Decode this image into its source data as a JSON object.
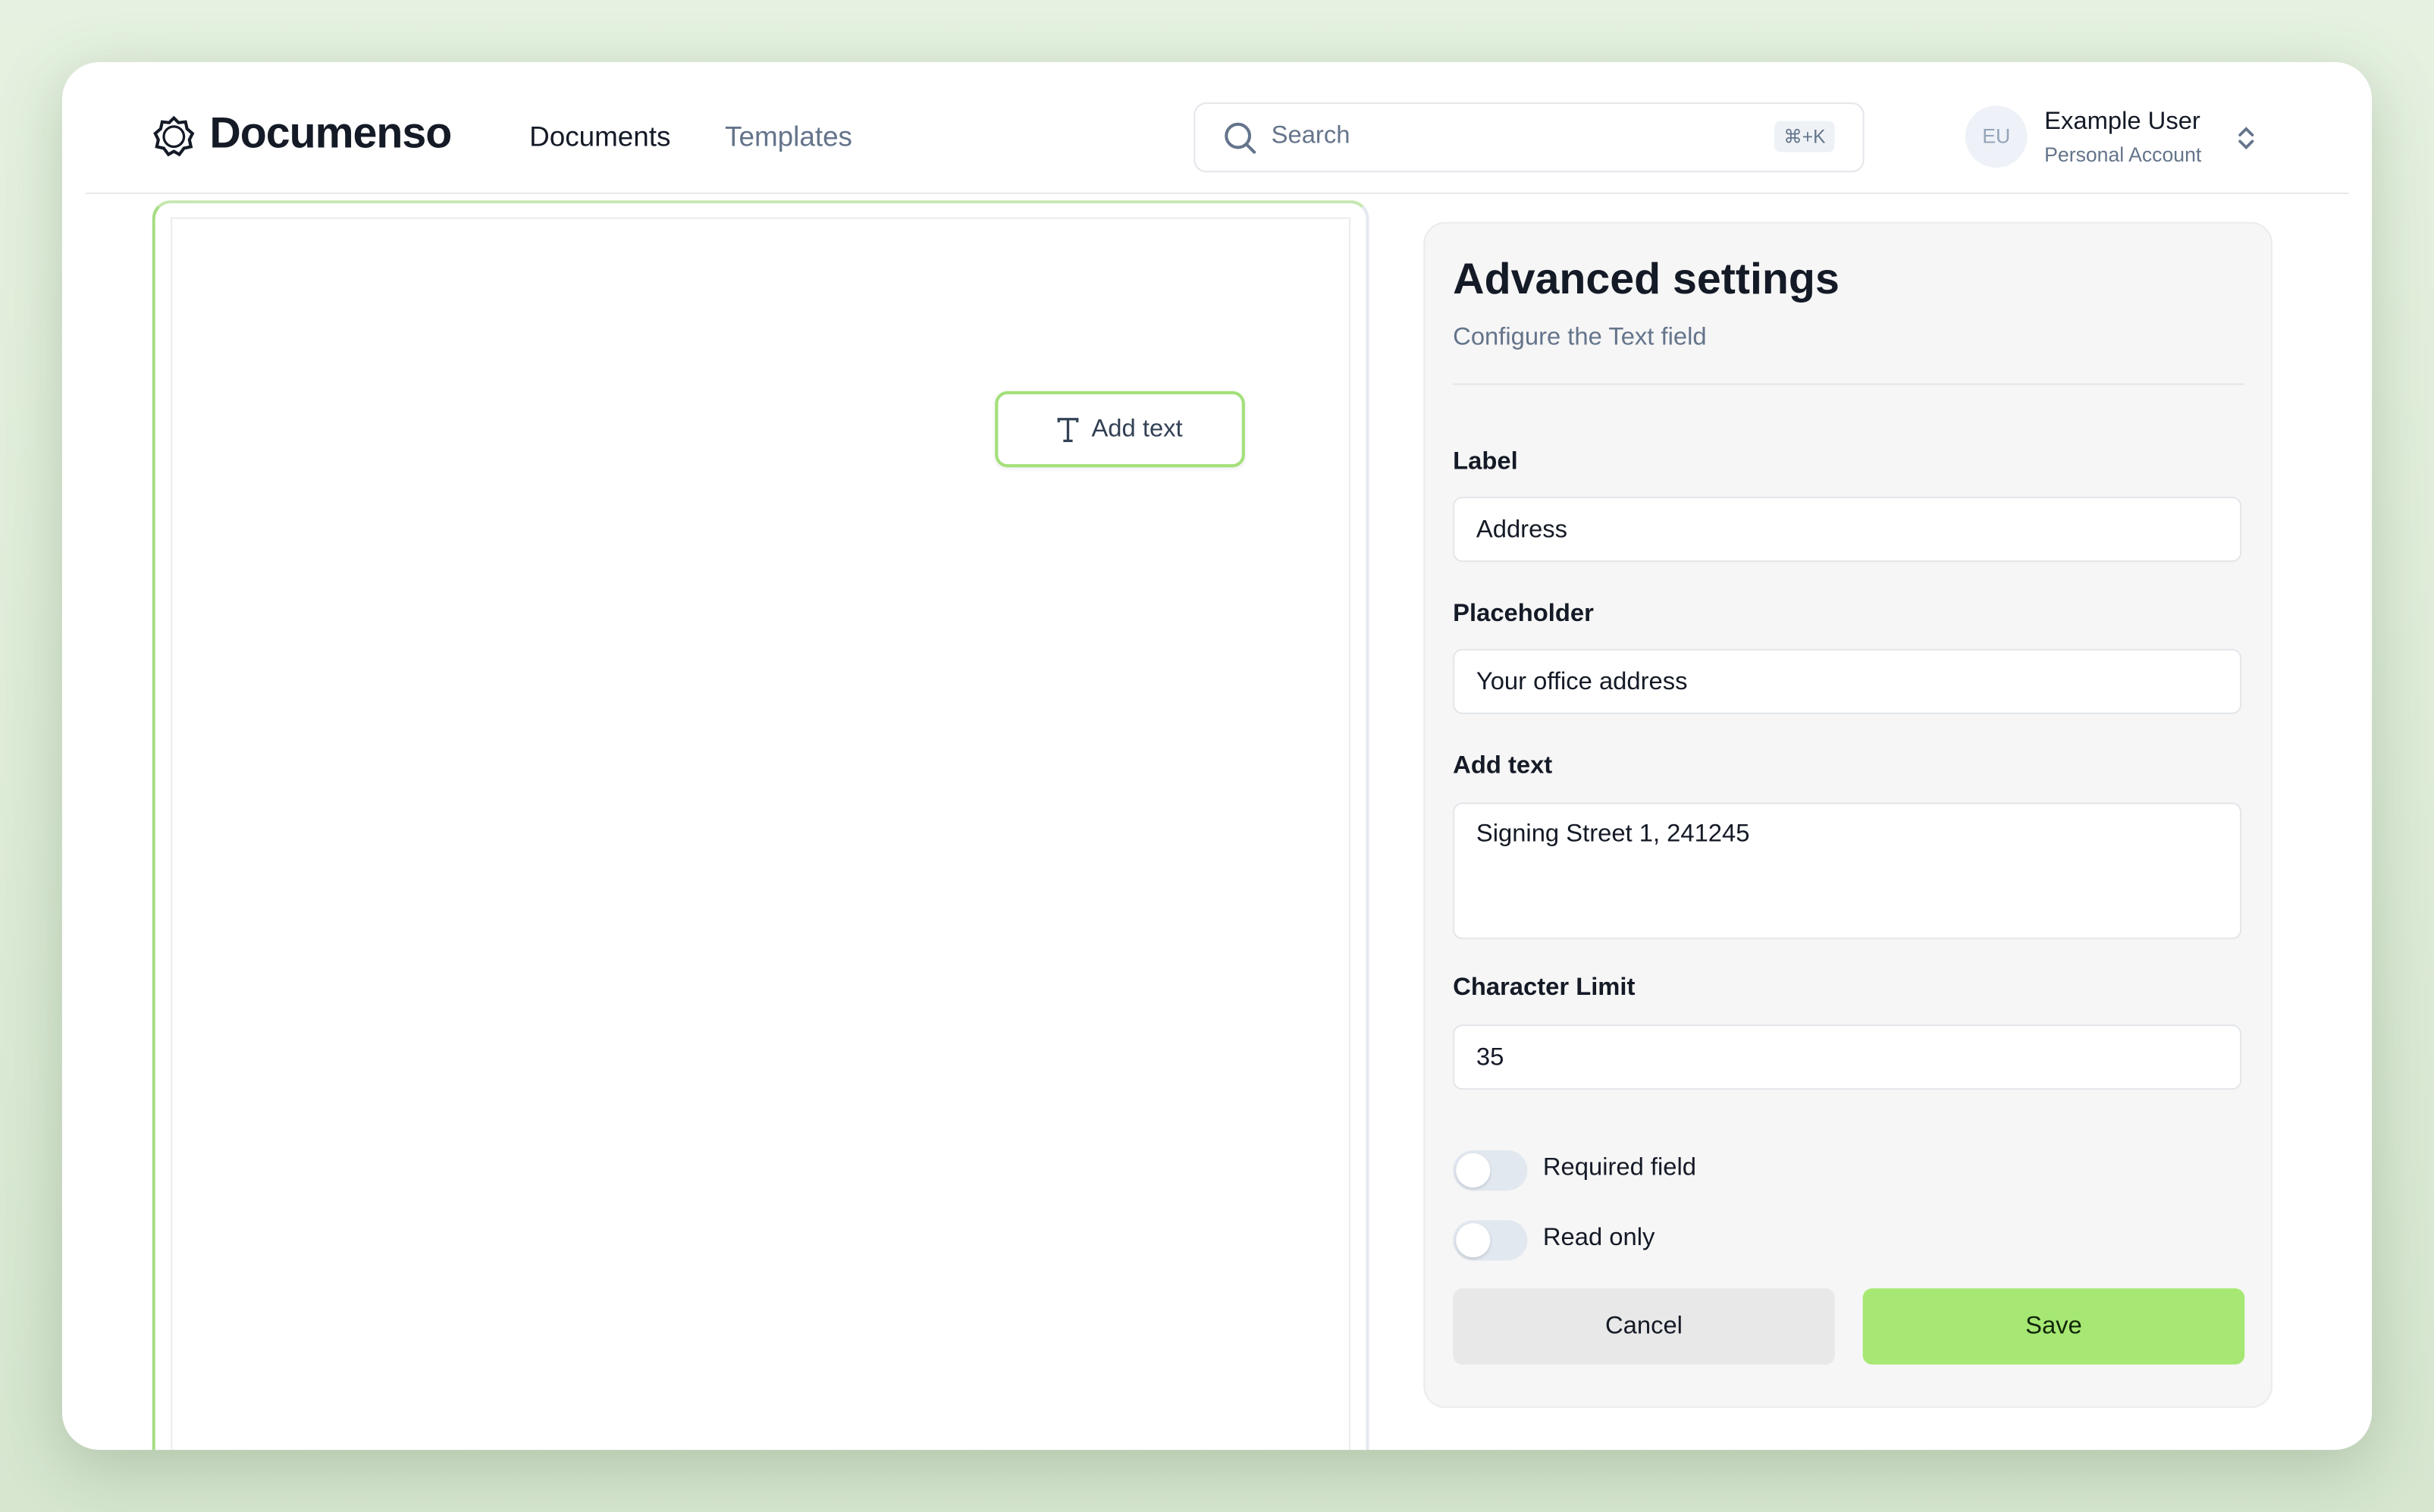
{
  "header": {
    "brand": "Documenso",
    "nav": [
      {
        "label": "Documents",
        "active": true
      },
      {
        "label": "Templates",
        "active": false
      }
    ],
    "search": {
      "placeholder": "Search",
      "shortcut": "⌘+K"
    },
    "user": {
      "initials": "EU",
      "name": "Example User",
      "account": "Personal Account"
    }
  },
  "document": {
    "field_label": "Add text",
    "field_icon": "text-type-icon"
  },
  "settings": {
    "title": "Advanced settings",
    "subtitle": "Configure the Text field",
    "fields": {
      "label": {
        "label": "Label",
        "value": "Address"
      },
      "placeholder": {
        "label": "Placeholder",
        "value": "Your office address"
      },
      "text": {
        "label": "Add text",
        "value": "Signing Street 1, 241245"
      },
      "limit": {
        "label": "Character Limit",
        "value": "35"
      }
    },
    "toggles": {
      "required": {
        "label": "Required field",
        "on": false
      },
      "readonly": {
        "label": "Read only",
        "on": false
      }
    },
    "cancel": "Cancel",
    "save": "Save"
  },
  "colors": {
    "accent": "#a3e635",
    "save_bg": "#a6e873",
    "cancel_bg": "#e8e8e8"
  }
}
